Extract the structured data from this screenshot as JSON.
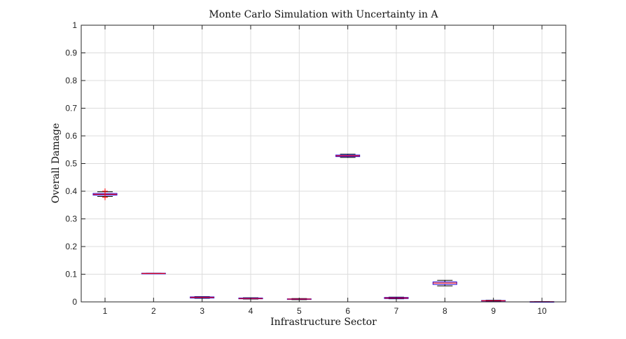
{
  "chart_data": {
    "type": "boxplot",
    "title": "Monte Carlo Simulation with Uncertainty in A",
    "xlabel": "Infrastructure Sector",
    "ylabel": "Overall Damage",
    "ylim": [
      0,
      1
    ],
    "yticks": [
      "0",
      "0.1",
      "0.2",
      "0.3",
      "0.4",
      "0.5",
      "0.6",
      "0.7",
      "0.8",
      "0.9",
      "1"
    ],
    "categories": [
      "1",
      "2",
      "3",
      "4",
      "5",
      "6",
      "7",
      "8",
      "9",
      "10"
    ],
    "grid": true,
    "boxes": [
      {
        "category": "1",
        "q1": 0.386,
        "median": 0.389,
        "q3": 0.392,
        "whisker_low": 0.381,
        "whisker_high": 0.398,
        "outliers": [
          0.378,
          0.4
        ]
      },
      {
        "category": "2",
        "q1": 0.1025,
        "median": 0.103,
        "q3": 0.1035,
        "whisker_low": 0.1025,
        "whisker_high": 0.1035,
        "outliers": []
      },
      {
        "category": "3",
        "q1": 0.014,
        "median": 0.016,
        "q3": 0.018,
        "whisker_low": 0.013,
        "whisker_high": 0.019,
        "outliers": []
      },
      {
        "category": "4",
        "q1": 0.011,
        "median": 0.012,
        "q3": 0.014,
        "whisker_low": 0.01,
        "whisker_high": 0.015,
        "outliers": []
      },
      {
        "category": "5",
        "q1": 0.009,
        "median": 0.01,
        "q3": 0.011,
        "whisker_low": 0.008,
        "whisker_high": 0.012,
        "outliers": []
      },
      {
        "category": "6",
        "q1": 0.525,
        "median": 0.528,
        "q3": 0.531,
        "whisker_low": 0.522,
        "whisker_high": 0.534,
        "outliers": []
      },
      {
        "category": "7",
        "q1": 0.012,
        "median": 0.014,
        "q3": 0.016,
        "whisker_low": 0.011,
        "whisker_high": 0.017,
        "outliers": []
      },
      {
        "category": "8",
        "q1": 0.063,
        "median": 0.068,
        "q3": 0.072,
        "whisker_low": 0.058,
        "whisker_high": 0.078,
        "outliers": []
      },
      {
        "category": "9",
        "q1": 0.003,
        "median": 0.004,
        "q3": 0.005,
        "whisker_low": 0.002,
        "whisker_high": 0.006,
        "outliers": []
      },
      {
        "category": "10",
        "q1": 0.0002,
        "median": 0.0005,
        "q3": 0.0008,
        "whisker_low": 0.0,
        "whisker_high": 0.001,
        "outliers": []
      }
    ],
    "colors": {
      "box": "#2200cc",
      "median": "#ff0000",
      "whisker": "#000000",
      "outlier": "#ff0000",
      "grid": "#dcdcdc",
      "axis": "#262626"
    }
  }
}
